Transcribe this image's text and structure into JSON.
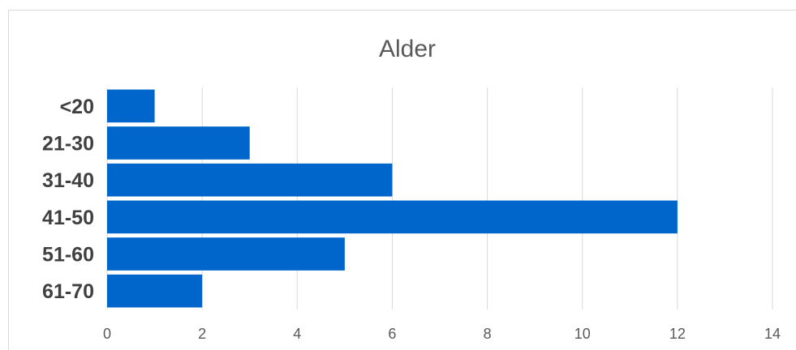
{
  "chart_data": {
    "type": "bar",
    "orientation": "horizontal",
    "title": "Alder",
    "categories": [
      "<20",
      "21-30",
      "31-40",
      "41-50",
      "51-60",
      "61-70"
    ],
    "values": [
      1,
      3,
      6,
      12,
      5,
      2
    ],
    "xlim": [
      0,
      14
    ],
    "xticks": [
      0,
      2,
      4,
      6,
      8,
      10,
      12,
      14
    ],
    "xlabel": "",
    "ylabel": "",
    "grid": "vertical",
    "legend": "none",
    "bar_color": "#0066cc"
  }
}
